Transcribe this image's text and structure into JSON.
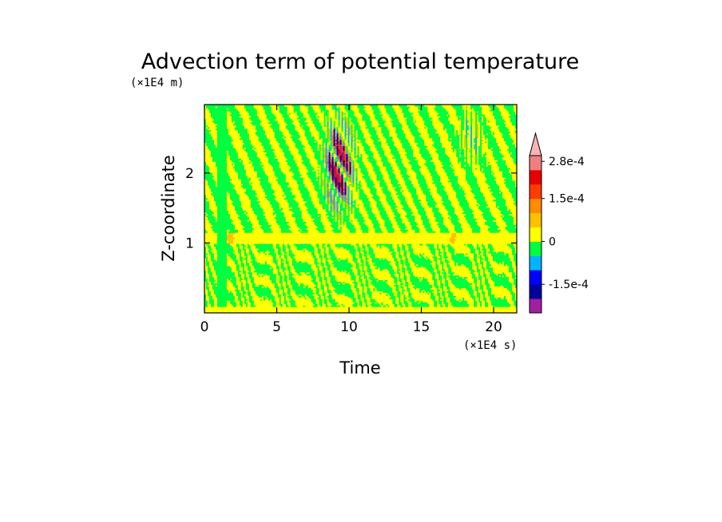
{
  "chart_data": {
    "type": "heatmap",
    "title": "Advection term of potential temperature",
    "xlabel": "Time",
    "ylabel": "Z-coordinate",
    "x_scale_label": "(×1E4 s)",
    "y_scale_label": "(×1E4 m)",
    "xlim": [
      0,
      21.6
    ],
    "ylim": [
      0,
      2.98
    ],
    "x_ticks": [
      {
        "value": 0,
        "label": "0"
      },
      {
        "value": 5,
        "label": "5"
      },
      {
        "value": 10,
        "label": "10"
      },
      {
        "value": 15,
        "label": "15"
      },
      {
        "value": 20,
        "label": "20"
      }
    ],
    "y_ticks": [
      {
        "value": 1,
        "label": "1"
      },
      {
        "value": 2,
        "label": "2"
      }
    ],
    "colorbar": {
      "levels": [
        -0.00025,
        -0.0002,
        -0.00015,
        -0.0001,
        -5e-05,
        0,
        5e-05,
        0.0001,
        0.00015,
        0.0002,
        0.00025,
        0.0003
      ],
      "colors": [
        "#a020a0",
        "#00009c",
        "#0000ff",
        "#00b4ff",
        "#00ff40",
        "#ffff00",
        "#ffc000",
        "#ff8c00",
        "#ff3c00",
        "#e60000",
        "#f08080",
        "#f8b4b4"
      ],
      "tick_labels": [
        {
          "value": 0.00028,
          "label": "2.8e-4"
        },
        {
          "value": 0.00015,
          "label": "1.5e-4"
        },
        {
          "value": 0,
          "label": "0"
        },
        {
          "value": -0.00015,
          "label": "-1.5e-4"
        }
      ]
    },
    "features": [
      {
        "x": [
          0.9,
          1.5
        ],
        "z": [
          0.1,
          2.98
        ],
        "category": "near-zero negative band"
      },
      {
        "x": [
          8,
          10.5
        ],
        "z": [
          1.3,
          2.8
        ],
        "category": "strong alternating positive/negative streaks"
      },
      {
        "x": [
          0,
          21.6
        ],
        "z": [
          1.0,
          1.15
        ],
        "category": "positive layer"
      }
    ]
  }
}
